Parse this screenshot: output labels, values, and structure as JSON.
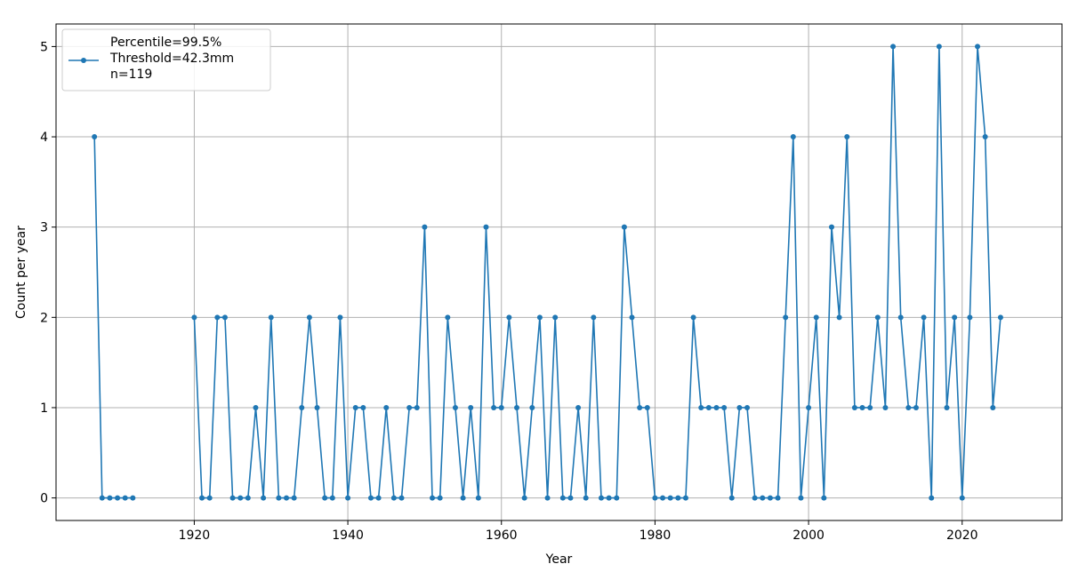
{
  "chart_data": {
    "type": "line",
    "title": "",
    "xlabel": "Year",
    "ylabel": "Count per year",
    "xlim": [
      1902,
      2033
    ],
    "ylim": [
      -0.25,
      5.25
    ],
    "xticks": [
      1920,
      1940,
      1960,
      1980,
      2000,
      2020
    ],
    "yticks": [
      0,
      1,
      2,
      3,
      4,
      5
    ],
    "grid": true,
    "legend_position": "top-left",
    "color": "#1f77b4",
    "series": [
      {
        "name": "Percentile=99.5%\nThreshold=42.3mm\nn=119",
        "segments": [
          {
            "x": [
              1907,
              1908,
              1909,
              1910,
              1911,
              1912
            ],
            "y": [
              4,
              0,
              0,
              0,
              0,
              0
            ]
          },
          {
            "x": [
              1920,
              1921,
              1922,
              1923,
              1924,
              1925,
              1926,
              1927,
              1928,
              1929,
              1930,
              1931,
              1932,
              1933,
              1934,
              1935,
              1936,
              1937,
              1938,
              1939,
              1940,
              1941,
              1942,
              1943,
              1944,
              1945,
              1946,
              1947,
              1948,
              1949,
              1950,
              1951,
              1952,
              1953,
              1954,
              1955,
              1956,
              1957,
              1958,
              1959,
              1960,
              1961,
              1962,
              1963,
              1964,
              1965,
              1966,
              1967,
              1968,
              1969,
              1970,
              1971,
              1972,
              1973,
              1974,
              1975,
              1976,
              1977,
              1978,
              1979,
              1980,
              1981,
              1982,
              1983,
              1984,
              1985,
              1986,
              1987,
              1988,
              1989,
              1990,
              1991,
              1992,
              1993,
              1994,
              1995,
              1996,
              1997,
              1998,
              1999,
              2000,
              2001,
              2002,
              2003,
              2004,
              2005,
              2006,
              2007,
              2008,
              2009,
              2010,
              2011,
              2012,
              2013,
              2014,
              2015,
              2016,
              2017,
              2018,
              2019,
              2020,
              2021,
              2022,
              2023,
              2024,
              2025
            ],
            "y": [
              2,
              0,
              0,
              2,
              2,
              0,
              0,
              0,
              1,
              0,
              2,
              0,
              0,
              0,
              1,
              2,
              1,
              0,
              0,
              2,
              0,
              1,
              1,
              0,
              0,
              1,
              0,
              0,
              1,
              1,
              3,
              0,
              0,
              2,
              1,
              0,
              1,
              0,
              3,
              1,
              1,
              2,
              1,
              0,
              1,
              2,
              0,
              2,
              0,
              0,
              1,
              0,
              2,
              0,
              0,
              0,
              3,
              2,
              1,
              1,
              0,
              0,
              0,
              0,
              0,
              2,
              1,
              1,
              1,
              1,
              0,
              1,
              1,
              0,
              0,
              0,
              0,
              2,
              4,
              0,
              1,
              2,
              0,
              3,
              2,
              4,
              1,
              1,
              1,
              2,
              1,
              5,
              2,
              1,
              1,
              2,
              0,
              5,
              1,
              2,
              0,
              2,
              5,
              4,
              1,
              2
            ]
          }
        ]
      }
    ]
  }
}
